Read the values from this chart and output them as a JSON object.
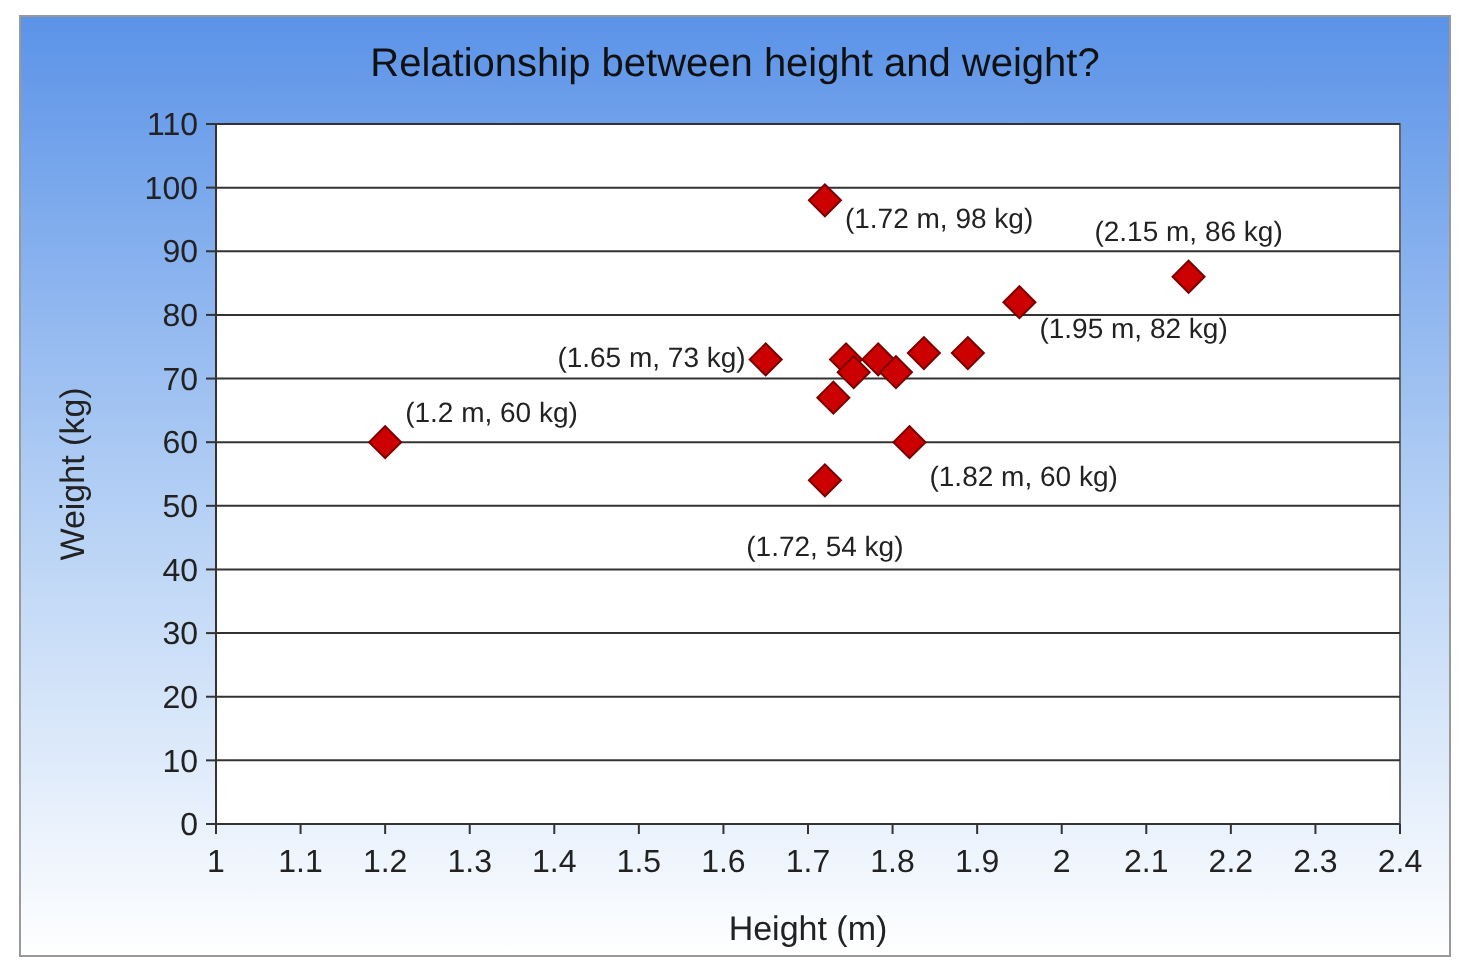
{
  "chart_data": {
    "type": "scatter",
    "title": "Relationship between height and weight?",
    "xlabel": "Height (m)",
    "ylabel": "Weight (kg)",
    "x": [
      1.2,
      1.65,
      1.72,
      1.72,
      1.73,
      1.745,
      1.754,
      1.783,
      1.804,
      1.82,
      1.837,
      1.889,
      1.95,
      2.15
    ],
    "series": [
      {
        "color": "#cc0000",
        "values": [
          60,
          73,
          98,
          54,
          67,
          73,
          71,
          73,
          71,
          60,
          74,
          74,
          82,
          86
        ]
      }
    ],
    "xlim": [
      1,
      2.4
    ],
    "xticks": [
      1,
      1.1,
      1.2,
      1.3,
      1.4,
      1.5,
      1.6,
      1.7,
      1.8,
      1.9,
      2,
      2.1,
      2.2,
      2.3,
      2.4
    ],
    "ylim": [
      0,
      110
    ],
    "yticks": [
      0,
      10,
      20,
      30,
      40,
      50,
      60,
      70,
      80,
      90,
      100,
      110
    ],
    "grid": "y",
    "marker": "diamond",
    "annotations": [
      {
        "text": "(1.2 m, 60 kg)",
        "x": 1.2,
        "y": 60
      },
      {
        "text": "(1.72 m, 98 kg)",
        "x": 1.72,
        "y": 98
      },
      {
        "text": "(2.15 m, 86 kg)",
        "x": 2.15,
        "y": 86
      },
      {
        "text": "(1.65 m, 73 kg)",
        "x": 1.65,
        "y": 73
      },
      {
        "text": "(1.95 m, 82 kg)",
        "x": 1.95,
        "y": 82
      },
      {
        "text": "(1.82 m, 60 kg)",
        "x": 1.82,
        "y": 60
      },
      {
        "text": "(1.72, 54 kg)",
        "x": 1.72,
        "y": 54
      }
    ]
  }
}
